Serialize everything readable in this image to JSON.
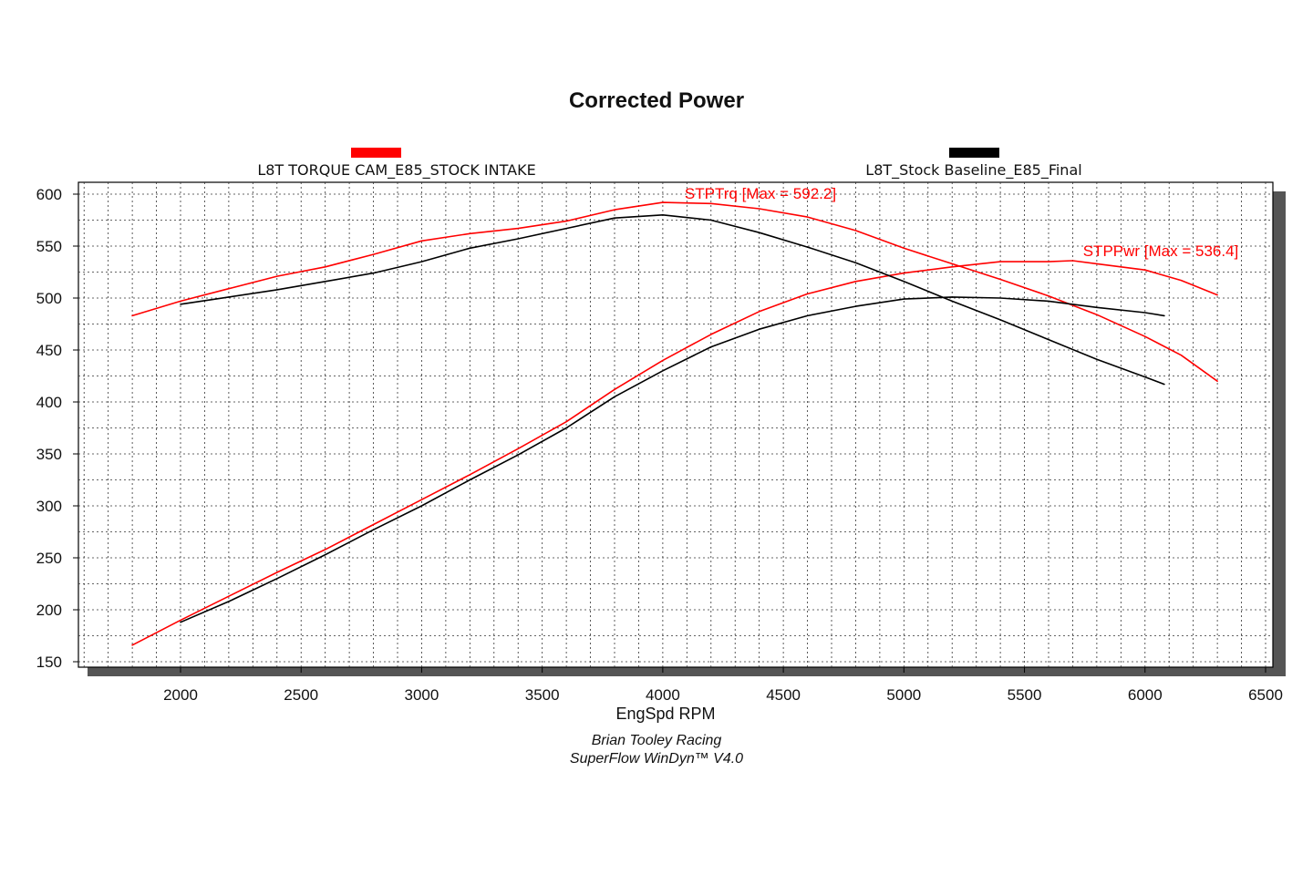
{
  "chart_data": {
    "type": "line",
    "title": "Corrected Power",
    "xlabel": "EngSpd RPM",
    "ylabel": "",
    "xlim": [
      1600,
      6500
    ],
    "ylim": [
      150,
      600
    ],
    "xticks": [
      2000,
      2500,
      3000,
      3500,
      4000,
      4500,
      5000,
      5500,
      6000,
      6500
    ],
    "yticks": [
      150,
      200,
      250,
      300,
      350,
      400,
      450,
      500,
      550,
      600
    ],
    "grid": true,
    "legend_position": "top",
    "legend": [
      {
        "label": "L8T TORQUE CAM_E85_STOCK INTAKE",
        "color": "#ff0000"
      },
      {
        "label": "L8T_Stock Baseline_E85_Final",
        "color": "#000000"
      }
    ],
    "annotations": [
      {
        "text": "STPTrq [Max = 592.2]",
        "color": "#ff0000",
        "series": "L8T TORQUE CAM_E85_STOCK INTAKE STPTrq"
      },
      {
        "text": "STPPwr [Max = 536.4]",
        "color": "#ff0000",
        "series": "L8T TORQUE CAM_E85_STOCK INTAKE STPPwr"
      }
    ],
    "footer": [
      "Brian Tooley Racing",
      "SuperFlow WinDyn™  V4.0"
    ],
    "series": [
      {
        "name": "L8T TORQUE CAM_E85_STOCK INTAKE STPTrq",
        "color": "#ff0000",
        "x": [
          1800,
          2000,
          2200,
          2400,
          2600,
          2800,
          3000,
          3200,
          3400,
          3600,
          3800,
          4000,
          4200,
          4400,
          4600,
          4800,
          5000,
          5200,
          5400,
          5600,
          5800,
          6000,
          6150,
          6300
        ],
        "y": [
          483,
          497,
          509,
          521,
          530,
          542,
          555,
          562,
          567,
          574,
          585,
          592,
          591,
          586,
          578,
          565,
          548,
          533,
          518,
          502,
          484,
          463,
          445,
          420
        ]
      },
      {
        "name": "L8T TORQUE CAM_E85_STOCK INTAKE STPPwr",
        "color": "#ff0000",
        "x": [
          1800,
          2000,
          2200,
          2400,
          2600,
          2800,
          3000,
          3200,
          3400,
          3600,
          3800,
          4000,
          4200,
          4400,
          4600,
          4800,
          5000,
          5200,
          5400,
          5600,
          5700,
          5800,
          6000,
          6150,
          6300
        ],
        "y": [
          166,
          190,
          213,
          236,
          258,
          282,
          306,
          330,
          355,
          381,
          412,
          440,
          465,
          487,
          504,
          516,
          524,
          530,
          535,
          535,
          536,
          533,
          527,
          517,
          503
        ]
      },
      {
        "name": "L8T_Stock Baseline_E85_Final STPTrq",
        "color": "#000000",
        "x": [
          2000,
          2200,
          2400,
          2600,
          2800,
          3000,
          3200,
          3400,
          3600,
          3800,
          4000,
          4200,
          4400,
          4600,
          4800,
          5000,
          5200,
          5400,
          5600,
          5800,
          6000,
          6080
        ],
        "y": [
          494,
          501,
          508,
          516,
          524,
          535,
          548,
          557,
          567,
          577,
          580,
          575,
          563,
          549,
          534,
          516,
          497,
          479,
          460,
          441,
          424,
          417
        ]
      },
      {
        "name": "L8T_Stock Baseline_E85_Final STPPwr",
        "color": "#000000",
        "x": [
          2000,
          2200,
          2400,
          2600,
          2800,
          3000,
          3200,
          3400,
          3600,
          3800,
          4000,
          4200,
          4400,
          4600,
          4800,
          5000,
          5200,
          5400,
          5600,
          5800,
          6000,
          6080
        ],
        "y": [
          188,
          208,
          230,
          253,
          277,
          300,
          325,
          349,
          375,
          405,
          430,
          453,
          470,
          483,
          492,
          499,
          501,
          500,
          497,
          491,
          486,
          483
        ]
      }
    ]
  }
}
